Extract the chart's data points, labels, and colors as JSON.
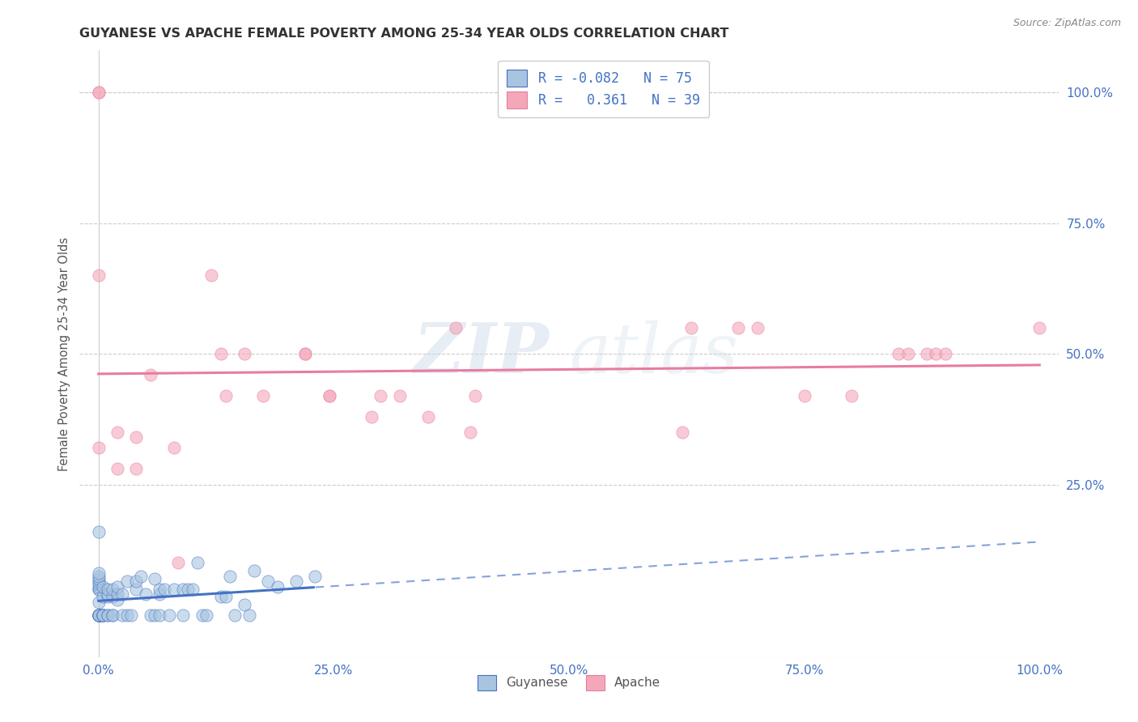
{
  "title": "GUYANESE VS APACHE FEMALE POVERTY AMONG 25-34 YEAR OLDS CORRELATION CHART",
  "source": "Source: ZipAtlas.com",
  "ylabel": "Female Poverty Among 25-34 Year Olds",
  "xlim": [
    -0.02,
    1.02
  ],
  "ylim": [
    -0.08,
    1.08
  ],
  "xtick_labels": [
    "0.0%",
    "25.0%",
    "50.0%",
    "75.0%",
    "100.0%"
  ],
  "xtick_vals": [
    0.0,
    0.25,
    0.5,
    0.75,
    1.0
  ],
  "ytick_labels_right": [
    "100.0%",
    "75.0%",
    "50.0%",
    "25.0%"
  ],
  "ytick_vals_right": [
    1.0,
    0.75,
    0.5,
    0.25
  ],
  "guyanese_color": "#a8c4e0",
  "apache_color": "#f4a7b9",
  "guyanese_line_color": "#4472c4",
  "apache_line_color": "#e87ca0",
  "legend_R_guyanese": "-0.082",
  "legend_N_guyanese": "75",
  "legend_R_apache": "0.361",
  "legend_N_apache": "39",
  "watermark_zip": "ZIP",
  "watermark_atlas": "atlas",
  "background_color": "#ffffff",
  "guyanese_x": [
    0.0,
    0.0,
    0.0,
    0.0,
    0.0,
    0.0,
    0.0,
    0.0,
    0.0,
    0.0,
    0.0,
    0.0,
    0.0,
    0.0,
    0.0,
    0.0,
    0.0,
    0.0,
    0.0,
    0.0,
    0.005,
    0.005,
    0.005,
    0.005,
    0.005,
    0.005,
    0.005,
    0.01,
    0.01,
    0.01,
    0.01,
    0.01,
    0.015,
    0.015,
    0.015,
    0.015,
    0.02,
    0.02,
    0.02,
    0.025,
    0.025,
    0.03,
    0.03,
    0.035,
    0.04,
    0.04,
    0.045,
    0.05,
    0.055,
    0.06,
    0.06,
    0.065,
    0.065,
    0.065,
    0.07,
    0.075,
    0.08,
    0.09,
    0.09,
    0.095,
    0.1,
    0.105,
    0.11,
    0.115,
    0.13,
    0.135,
    0.14,
    0.145,
    0.155,
    0.16,
    0.165,
    0.18,
    0.19,
    0.21,
    0.23
  ],
  "guyanese_y": [
    0.0,
    0.0,
    0.0,
    0.0,
    0.0,
    0.0,
    0.0,
    0.0,
    0.0,
    0.0,
    0.025,
    0.05,
    0.05,
    0.055,
    0.06,
    0.065,
    0.07,
    0.075,
    0.08,
    0.16,
    0.0,
    0.0,
    0.0,
    0.0,
    0.0,
    0.035,
    0.055,
    0.0,
    0.0,
    0.035,
    0.04,
    0.05,
    0.0,
    0.0,
    0.035,
    0.05,
    0.03,
    0.04,
    0.055,
    0.0,
    0.04,
    0.0,
    0.065,
    0.0,
    0.05,
    0.065,
    0.075,
    0.04,
    0.0,
    0.0,
    0.07,
    0.0,
    0.04,
    0.05,
    0.05,
    0.0,
    0.05,
    0.0,
    0.05,
    0.05,
    0.05,
    0.1,
    0.0,
    0.0,
    0.035,
    0.035,
    0.075,
    0.0,
    0.02,
    0.0,
    0.085,
    0.065,
    0.055,
    0.065,
    0.075
  ],
  "apache_x": [
    0.0,
    0.0,
    0.0,
    0.0,
    0.02,
    0.02,
    0.04,
    0.04,
    0.055,
    0.08,
    0.085,
    0.12,
    0.13,
    0.135,
    0.155,
    0.175,
    0.22,
    0.22,
    0.245,
    0.245,
    0.29,
    0.3,
    0.32,
    0.35,
    0.38,
    0.395,
    0.4,
    0.62,
    0.63,
    0.68,
    0.7,
    0.75,
    0.8,
    0.85,
    0.86,
    0.88,
    0.89,
    0.9,
    1.0
  ],
  "apache_y": [
    1.0,
    1.0,
    0.65,
    0.32,
    0.35,
    0.28,
    0.34,
    0.28,
    0.46,
    0.32,
    0.1,
    0.65,
    0.5,
    0.42,
    0.5,
    0.42,
    0.5,
    0.5,
    0.42,
    0.42,
    0.38,
    0.42,
    0.42,
    0.38,
    0.55,
    0.35,
    0.42,
    0.35,
    0.55,
    0.55,
    0.55,
    0.42,
    0.42,
    0.5,
    0.5,
    0.5,
    0.5,
    0.5,
    0.55
  ]
}
